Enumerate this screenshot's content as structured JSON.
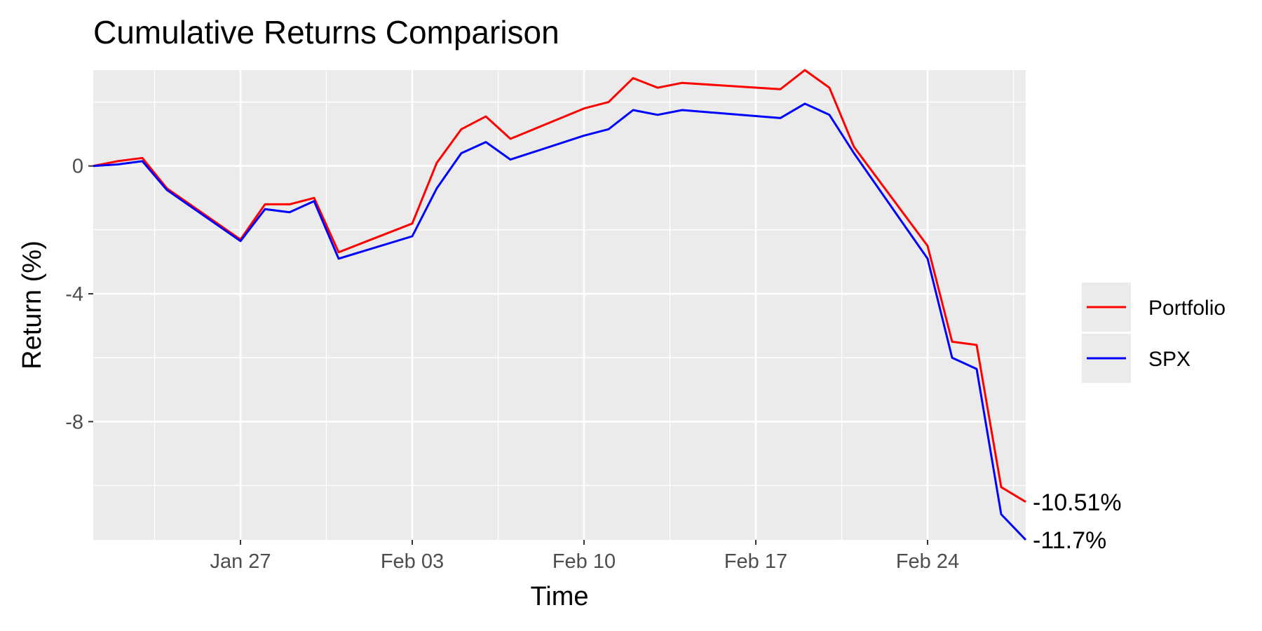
{
  "chart_data": {
    "type": "line",
    "title": "Cumulative Returns Comparison",
    "xlabel": "Time",
    "ylabel": "Return (%)",
    "xlim": [
      "2025-01-21",
      "2025-02-28"
    ],
    "ylim": [
      -11.7,
      3.0
    ],
    "x_ticks": [
      {
        "date": "2025-01-27",
        "label": "Jan 27"
      },
      {
        "date": "2025-02-03",
        "label": "Feb 03"
      },
      {
        "date": "2025-02-10",
        "label": "Feb 10"
      },
      {
        "date": "2025-02-17",
        "label": "Feb 17"
      },
      {
        "date": "2025-02-24",
        "label": "Feb 24"
      }
    ],
    "y_ticks": [
      0,
      -4,
      -8
    ],
    "grid": true,
    "legend_position": "right",
    "dates": [
      "2025-01-21",
      "2025-01-22",
      "2025-01-23",
      "2025-01-24",
      "2025-01-27",
      "2025-01-28",
      "2025-01-29",
      "2025-01-30",
      "2025-01-31",
      "2025-02-03",
      "2025-02-04",
      "2025-02-05",
      "2025-02-06",
      "2025-02-07",
      "2025-02-10",
      "2025-02-11",
      "2025-02-12",
      "2025-02-13",
      "2025-02-14",
      "2025-02-18",
      "2025-02-19",
      "2025-02-20",
      "2025-02-21",
      "2025-02-24",
      "2025-02-25",
      "2025-02-26",
      "2025-02-27",
      "2025-02-28"
    ],
    "series": [
      {
        "name": "Portfolio",
        "color": "#ff0000",
        "values": [
          0.0,
          0.15,
          0.25,
          -0.7,
          -2.3,
          -1.2,
          -1.2,
          -1.0,
          -2.7,
          -1.8,
          0.1,
          1.15,
          1.55,
          0.85,
          1.8,
          2.0,
          2.75,
          2.45,
          2.6,
          2.4,
          3.0,
          2.45,
          0.6,
          -2.5,
          -5.5,
          -5.6,
          -10.05,
          -10.51
        ],
        "end_label": "-10.51%"
      },
      {
        "name": "SPX",
        "color": "#0000ff",
        "values": [
          0.0,
          0.05,
          0.15,
          -0.75,
          -2.35,
          -1.35,
          -1.45,
          -1.1,
          -2.9,
          -2.2,
          -0.7,
          0.4,
          0.75,
          0.2,
          0.95,
          1.15,
          1.75,
          1.6,
          1.75,
          1.5,
          1.95,
          1.6,
          0.4,
          -2.9,
          -6.0,
          -6.35,
          -10.9,
          -11.7
        ],
        "end_label": "-11.7%"
      }
    ]
  }
}
